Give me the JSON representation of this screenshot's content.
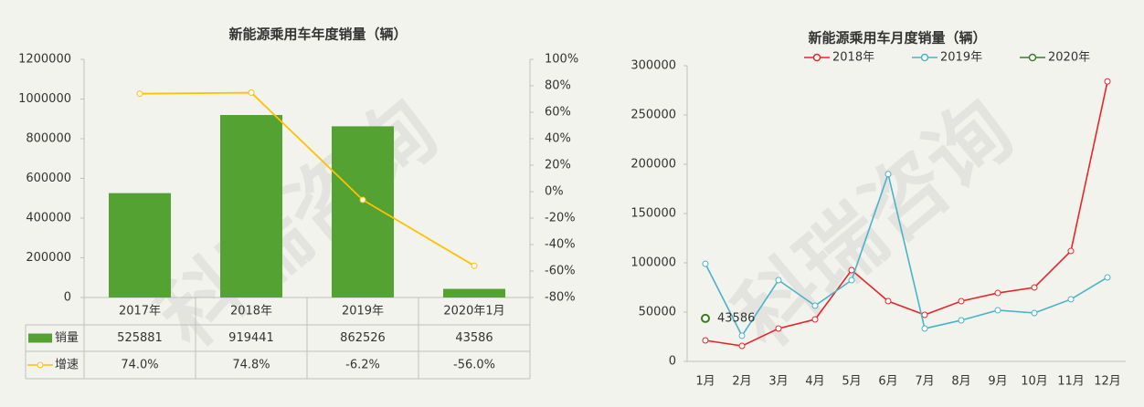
{
  "watermark": "科瑞咨询",
  "chart_data": [
    {
      "type": "combo",
      "title": "新能源乘用车年度销量（辆）",
      "categories": [
        "2017年",
        "2018年",
        "2019年",
        "2020年1月"
      ],
      "series": [
        {
          "name": "销量",
          "type": "bar",
          "color": "#53a232",
          "values": [
            525881,
            919441,
            862526,
            43586
          ]
        },
        {
          "name": "增速",
          "type": "line",
          "axis": "y2",
          "color": "#ffc000",
          "values": [
            74.0,
            74.8,
            -6.2,
            -56.0
          ],
          "value_labels": [
            "74.0%",
            "74.8%",
            "-6.2%",
            "-56.0%"
          ]
        }
      ],
      "ylim": [
        0,
        1200000
      ],
      "yticks": [
        0,
        200000,
        400000,
        600000,
        800000,
        1000000,
        1200000
      ],
      "y2lim": [
        -80,
        100
      ],
      "y2ticks": [
        {
          "value": -80,
          "label": "-80%"
        },
        {
          "value": -60,
          "label": "-60%"
        },
        {
          "value": -40,
          "label": "-40%"
        },
        {
          "value": -20,
          "label": "-20%"
        },
        {
          "value": 0,
          "label": "0%"
        },
        {
          "value": 20,
          "label": "20%"
        },
        {
          "value": 40,
          "label": "40%"
        },
        {
          "value": 60,
          "label": "60%"
        },
        {
          "value": 80,
          "label": "80%"
        },
        {
          "value": 100,
          "label": "100%"
        }
      ],
      "grid": false,
      "data_table": true
    },
    {
      "type": "line",
      "title": "新能源乘用车月度销量（辆）",
      "categories": [
        "1月",
        "2月",
        "3月",
        "4月",
        "5月",
        "6月",
        "7月",
        "8月",
        "9月",
        "10月",
        "11月",
        "12月"
      ],
      "series": [
        {
          "name": "2018年",
          "color": "#e8262a",
          "values": [
            21300,
            15700,
            33300,
            42600,
            92600,
            61100,
            47200,
            61100,
            69400,
            75000,
            112000,
            284000
          ]
        },
        {
          "name": "2019年",
          "color": "#4bb3c8",
          "values": [
            99000,
            26000,
            82400,
            56500,
            82400,
            190000,
            33300,
            41700,
            51900,
            49100,
            63000,
            85200
          ]
        },
        {
          "name": "2020年",
          "color": "#3a7d22",
          "show_labels": true,
          "values": [
            43586,
            null,
            null,
            null,
            null,
            null,
            null,
            null,
            null,
            null,
            null,
            null
          ]
        }
      ],
      "ylim": [
        0,
        300000
      ],
      "yticks": [
        0,
        50000,
        100000,
        150000,
        200000,
        250000,
        300000
      ],
      "grid": false,
      "legend": "top"
    }
  ]
}
